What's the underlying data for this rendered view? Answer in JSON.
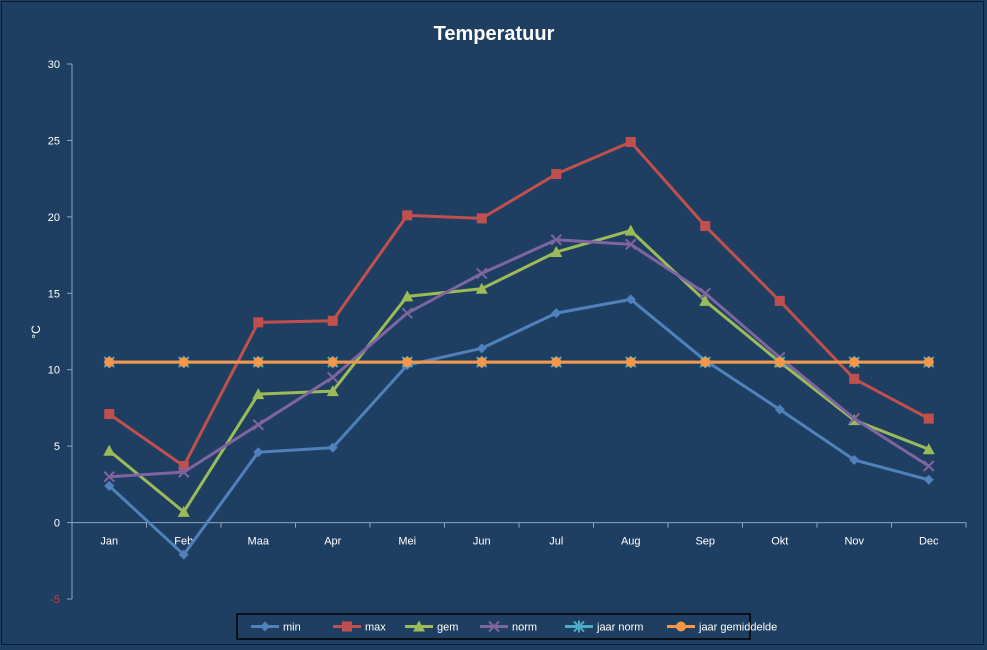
{
  "chart_data": {
    "type": "line",
    "title": "Temperatuur",
    "ylabel": "°C",
    "xlabel": "",
    "ylim": [
      -5,
      30
    ],
    "yticks": [
      -5,
      0,
      5,
      10,
      15,
      20,
      25,
      30
    ],
    "categories": [
      "Jan",
      "Feb",
      "Maa",
      "Apr",
      "Mei",
      "Jun",
      "Jul",
      "Aug",
      "Sep",
      "Okt",
      "Nov",
      "Dec"
    ],
    "grid": false,
    "legend_position": "bottom",
    "series": [
      {
        "name": "min",
        "color": "#4f81bd",
        "marker": "diamond",
        "values": [
          2.4,
          -2.1,
          4.6,
          4.9,
          10.3,
          11.4,
          13.7,
          14.6,
          10.6,
          7.4,
          4.1,
          2.8
        ]
      },
      {
        "name": "max",
        "color": "#c0504d",
        "marker": "square",
        "values": [
          7.1,
          3.7,
          13.1,
          13.2,
          20.1,
          19.9,
          22.8,
          24.9,
          19.4,
          14.5,
          9.4,
          6.8
        ]
      },
      {
        "name": "gem",
        "color": "#9bbb59",
        "marker": "triangle",
        "values": [
          4.7,
          0.7,
          8.4,
          8.6,
          14.8,
          15.3,
          17.7,
          19.1,
          14.5,
          10.5,
          6.7,
          4.8
        ]
      },
      {
        "name": "norm",
        "color": "#8064a2",
        "marker": "x",
        "values": [
          3.0,
          3.3,
          6.4,
          9.5,
          13.7,
          16.3,
          18.5,
          18.2,
          15.0,
          10.8,
          6.8,
          3.7
        ]
      },
      {
        "name": "jaar norm",
        "color": "#4bacc6",
        "marker": "star",
        "values": [
          10.5,
          10.5,
          10.5,
          10.5,
          10.5,
          10.5,
          10.5,
          10.5,
          10.5,
          10.5,
          10.5,
          10.5
        ]
      },
      {
        "name": "jaar gemiddelde",
        "color": "#f79646",
        "marker": "circle",
        "values": [
          10.5,
          10.5,
          10.5,
          10.5,
          10.5,
          10.5,
          10.5,
          10.5,
          10.5,
          10.5,
          10.5,
          10.5
        ]
      }
    ]
  }
}
